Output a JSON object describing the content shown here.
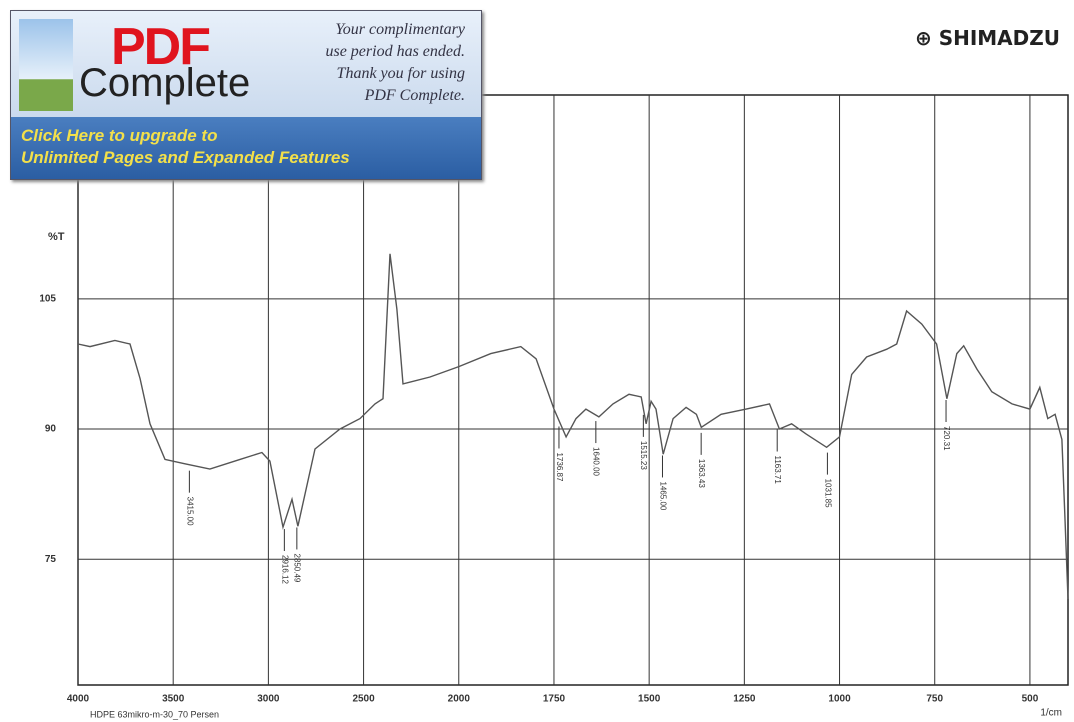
{
  "brand": "SHIMADZU",
  "banner": {
    "logo_top": "PDF",
    "logo_bottom": "Complete",
    "message": [
      "Your complimentary",
      "use period has ended.",
      "Thank you for using",
      "PDF Complete."
    ],
    "upgrade": [
      "Click Here to upgrade to",
      "Unlimited Pages and Expanded Features"
    ]
  },
  "chart_data": {
    "type": "line",
    "y_label": "%T",
    "x_label": "1/cm",
    "footnote": "HDPE 63mikro-m-30_70 Persen",
    "x": [
      4000,
      3937,
      3806,
      3727,
      3674,
      3622,
      3543,
      3438,
      3307,
      3149,
      3034,
      2992,
      2923,
      2876,
      2845,
      2755,
      2624,
      2519,
      2440,
      2398,
      2361,
      2325,
      2293,
      2151,
      2000,
      1916,
      1837,
      1797,
      1750,
      1718,
      1692,
      1666,
      1632,
      1595,
      1553,
      1521,
      1508,
      1495,
      1482,
      1463,
      1437,
      1403,
      1376,
      1363,
      1311,
      1245,
      1184,
      1158,
      1126,
      1087,
      1034,
      1000,
      968,
      929,
      876,
      850,
      824,
      784,
      745,
      718,
      692,
      674,
      639,
      600,
      547,
      500,
      474,
      453,
      434,
      416,
      408,
      400
    ],
    "series": [
      {
        "color": "#555555",
        "values": [
          99.8,
          99.5,
          100.2,
          99.8,
          95.8,
          90.6,
          86.5,
          86.0,
          85.4,
          86.5,
          87.3,
          86.3,
          78.7,
          81.9,
          78.8,
          87.7,
          90.0,
          91.2,
          92.9,
          93.5,
          110.2,
          103.8,
          95.2,
          96.0,
          97.2,
          98.7,
          99.5,
          98.1,
          92.3,
          89.1,
          91.2,
          92.3,
          91.4,
          92.9,
          94.0,
          93.7,
          90.6,
          93.2,
          92.3,
          87.1,
          91.2,
          92.5,
          91.7,
          90.2,
          91.7,
          92.3,
          92.9,
          90.0,
          90.6,
          89.4,
          87.9,
          89.1,
          96.3,
          98.3,
          99.2,
          99.8,
          103.6,
          102.1,
          99.8,
          93.5,
          98.7,
          99.6,
          96.9,
          94.3,
          92.9,
          92.3,
          94.8,
          91.2,
          91.7,
          88.8,
          79.6,
          70.4
        ]
      }
    ],
    "xlim": [
      4000,
      400
    ],
    "ylim": [
      60.5,
      128.5
    ],
    "xticks": [
      4000,
      3500,
      3000,
      2500,
      2000,
      1750,
      1500,
      1250,
      1000,
      750,
      500
    ],
    "yticks": [
      75,
      90,
      105
    ],
    "grid": true,
    "peaks": [
      {
        "x": 3415.0,
        "label": "3415.00"
      },
      {
        "x": 2916.12,
        "label": "2916.12"
      },
      {
        "x": 2850.49,
        "label": "2850.49"
      },
      {
        "x": 1736.87,
        "label": "1736.87"
      },
      {
        "x": 1640.0,
        "label": "1640.00"
      },
      {
        "x": 1515.23,
        "label": "1515.23"
      },
      {
        "x": 1465.0,
        "label": "1465.00"
      },
      {
        "x": 1363.43,
        "label": "1363.43"
      },
      {
        "x": 1163.71,
        "label": "1163.71"
      },
      {
        "x": 1031.85,
        "label": "1031.85"
      },
      {
        "x": 720.31,
        "label": "720.31"
      }
    ]
  }
}
